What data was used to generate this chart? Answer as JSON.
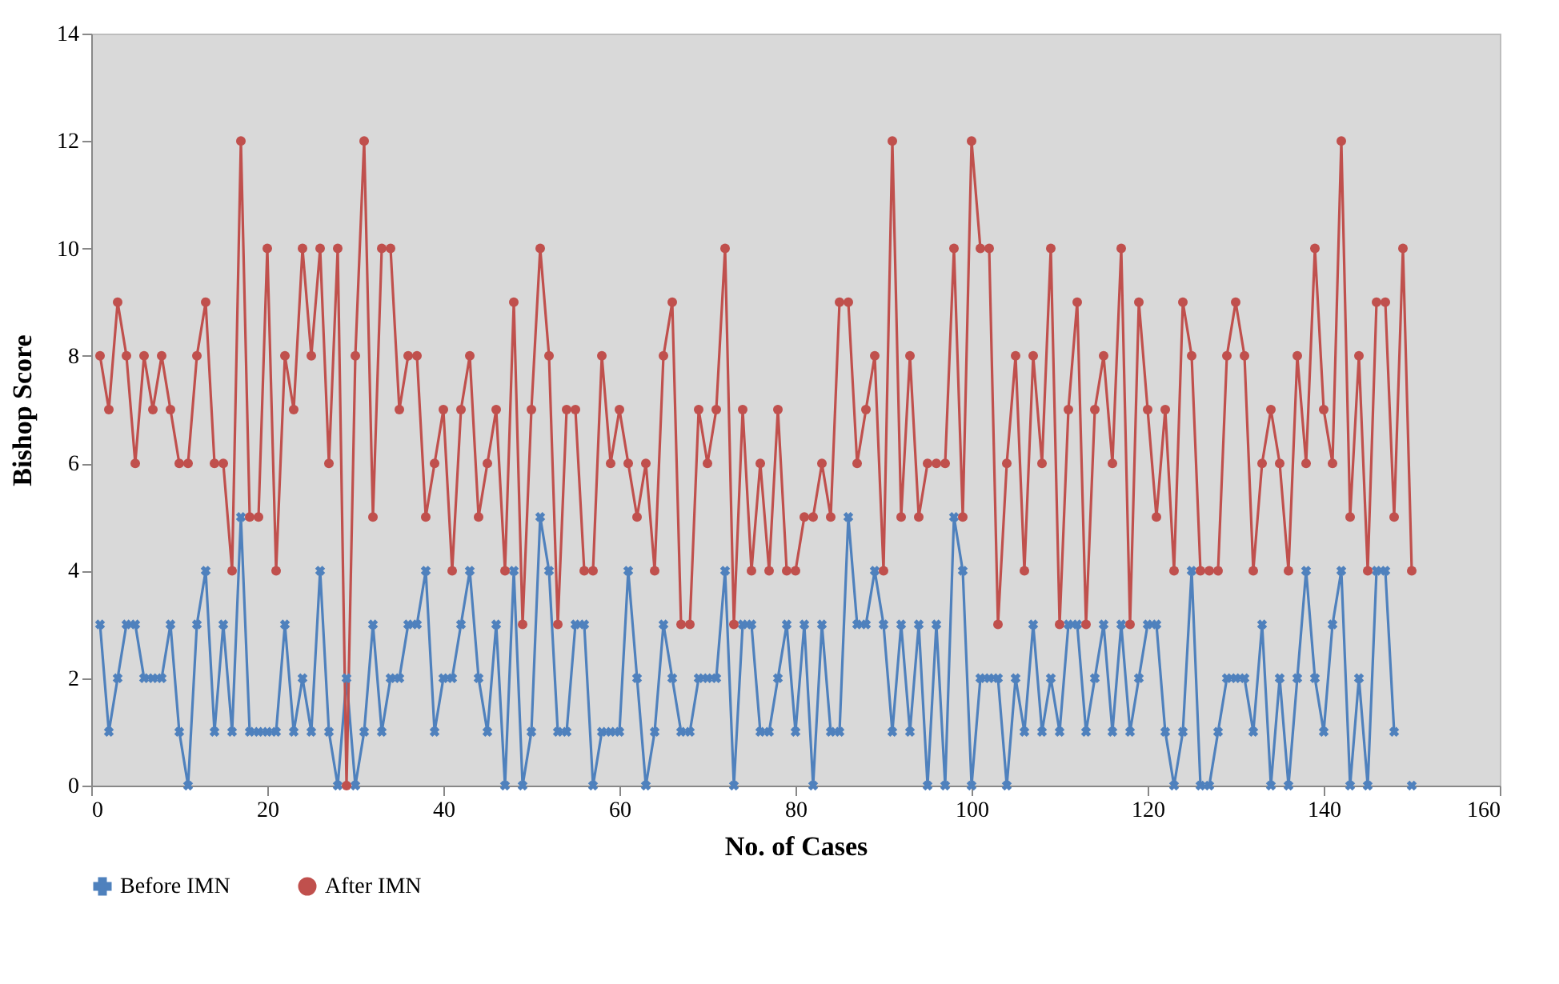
{
  "chart_data": {
    "type": "line",
    "xlabel": "No. of Cases",
    "ylabel": "Bishop Score",
    "x": [
      1,
      2,
      3,
      4,
      5,
      6,
      7,
      8,
      9,
      10,
      11,
      12,
      13,
      14,
      15,
      16,
      17,
      18,
      19,
      20,
      21,
      22,
      23,
      24,
      25,
      26,
      27,
      28,
      29,
      30,
      31,
      32,
      33,
      34,
      35,
      36,
      37,
      38,
      39,
      40,
      41,
      42,
      43,
      44,
      45,
      46,
      47,
      48,
      49,
      50,
      51,
      52,
      53,
      54,
      55,
      56,
      57,
      58,
      59,
      60,
      61,
      62,
      63,
      64,
      65,
      66,
      67,
      68,
      69,
      70,
      71,
      72,
      73,
      74,
      75,
      76,
      77,
      78,
      79,
      80,
      81,
      82,
      83,
      84,
      85,
      86,
      87,
      88,
      89,
      90,
      91,
      92,
      93,
      94,
      95,
      96,
      97,
      98,
      99,
      100,
      101,
      102,
      103,
      104,
      105,
      106,
      107,
      108,
      109,
      110,
      111,
      112,
      113,
      114,
      115,
      116,
      117,
      118,
      119,
      120,
      121,
      122,
      123,
      124,
      125,
      126,
      127,
      128,
      129,
      130,
      131,
      132,
      133,
      134,
      135,
      136,
      137,
      138,
      139,
      140,
      141,
      142,
      143,
      144,
      145,
      146,
      147,
      148,
      149,
      150
    ],
    "series": [
      {
        "name": "Before IMN",
        "color": "#4f81bd",
        "marker": "cross",
        "values": [
          3,
          1,
          2,
          3,
          3,
          2,
          2,
          2,
          3,
          1,
          0,
          3,
          4,
          1,
          3,
          1,
          5,
          1,
          1,
          1,
          1,
          3,
          1,
          2,
          1,
          4,
          1,
          0,
          2,
          0,
          1,
          3,
          1,
          2,
          2,
          3,
          3,
          4,
          1,
          2,
          2,
          3,
          4,
          2,
          1,
          3,
          0,
          4,
          0,
          1,
          5,
          4,
          1,
          1,
          3,
          3,
          0,
          1,
          1,
          1,
          4,
          2,
          0,
          1,
          3,
          2,
          1,
          1,
          2,
          2,
          2,
          4,
          0,
          3,
          3,
          1,
          1,
          2,
          3,
          1,
          3,
          0,
          3,
          1,
          1,
          5,
          3,
          3,
          4,
          3,
          1,
          3,
          1,
          3,
          0,
          3,
          0,
          5,
          4,
          0,
          2,
          2,
          2,
          0,
          2,
          1,
          3,
          1,
          2,
          1,
          3,
          3,
          1,
          2,
          3,
          1,
          3,
          1,
          2,
          3,
          3,
          1,
          0,
          1,
          4,
          0,
          0,
          1,
          2,
          2,
          2,
          1,
          3,
          0,
          2,
          0,
          2,
          4,
          2,
          1,
          3,
          4,
          0,
          2,
          0,
          4,
          4,
          1,
          null,
          0
        ]
      },
      {
        "name": "After IMN",
        "color": "#c0504d",
        "marker": "circle",
        "values": [
          8,
          7,
          9,
          8,
          6,
          8,
          7,
          8,
          7,
          6,
          6,
          8,
          9,
          6,
          6,
          4,
          12,
          5,
          5,
          10,
          4,
          8,
          7,
          10,
          8,
          10,
          6,
          10,
          0,
          8,
          12,
          5,
          10,
          10,
          7,
          8,
          8,
          5,
          6,
          7,
          4,
          7,
          8,
          5,
          6,
          7,
          4,
          9,
          3,
          7,
          10,
          8,
          3,
          7,
          7,
          4,
          4,
          8,
          6,
          7,
          6,
          5,
          6,
          4,
          8,
          9,
          3,
          3,
          7,
          6,
          7,
          10,
          3,
          7,
          4,
          6,
          4,
          7,
          4,
          4,
          5,
          5,
          6,
          5,
          9,
          9,
          6,
          7,
          8,
          4,
          12,
          5,
          8,
          5,
          6,
          6,
          6,
          10,
          5,
          12,
          10,
          10,
          3,
          6,
          8,
          4,
          8,
          6,
          10,
          3,
          7,
          9,
          3,
          7,
          8,
          6,
          10,
          3,
          9,
          7,
          5,
          7,
          4,
          9,
          8,
          4,
          4,
          4,
          8,
          9,
          8,
          4,
          6,
          7,
          6,
          4,
          8,
          6,
          10,
          7,
          6,
          12,
          5,
          8,
          4,
          9,
          9,
          5,
          10,
          4
        ]
      }
    ],
    "xlim": [
      0,
      160
    ],
    "xticks": [
      0,
      20,
      40,
      60,
      80,
      100,
      120,
      140,
      160
    ],
    "ylim": [
      0,
      14
    ],
    "yticks": [
      0,
      2,
      4,
      6,
      8,
      10,
      12,
      14
    ],
    "grid": false,
    "legend": "bottom"
  }
}
